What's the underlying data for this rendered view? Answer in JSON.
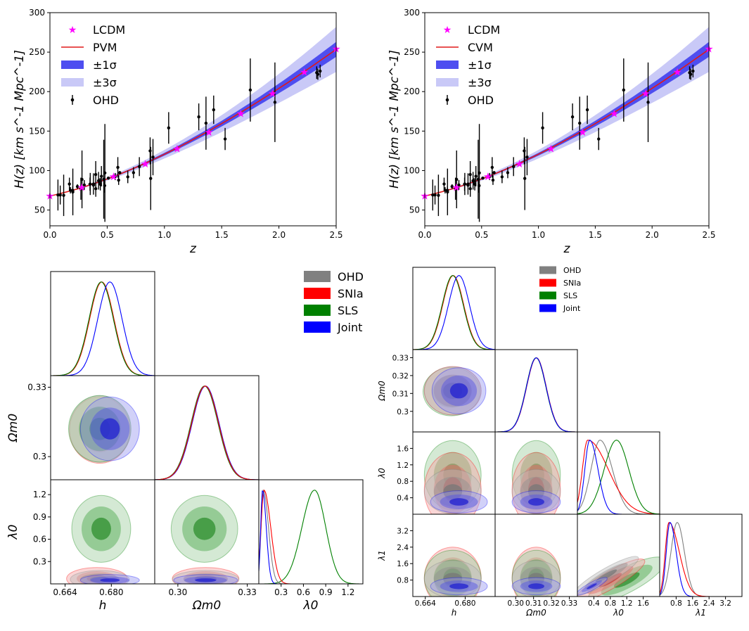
{
  "chart_data": [
    {
      "id": "hz-pvm",
      "type": "line",
      "xlabel": "z",
      "ylabel": "H(z) [km s^-1 Mpc^-1]",
      "xlim": [
        0,
        2.5
      ],
      "ylim": [
        30,
        300
      ],
      "xticks": [
        "0.0",
        "0.5",
        "1.0",
        "1.5",
        "2.0",
        "2.5"
      ],
      "yticks": [
        "50",
        "100",
        "150",
        "200",
        "250",
        "300"
      ],
      "legend": [
        "LCDM",
        "PVM",
        "±1σ",
        "±3σ",
        "OHD"
      ],
      "model": {
        "H0": 67.8,
        "Om": 0.31
      },
      "lcdm_points": {
        "x": [
          0.0,
          0.278,
          0.556,
          0.833,
          1.111,
          1.389,
          1.667,
          1.944,
          2.222,
          2.5
        ],
        "y": [
          67.8,
          78.6,
          92.2,
          108.6,
          127.5,
          148.7,
          172.1,
          197.5,
          224.9,
          254.1
        ]
      },
      "ohd": {
        "x": [
          0.07,
          0.09,
          0.12,
          0.17,
          0.179,
          0.199,
          0.2,
          0.24,
          0.27,
          0.28,
          0.3,
          0.35,
          0.352,
          0.38,
          0.3802,
          0.4,
          0.4004,
          0.4247,
          0.43,
          0.44,
          0.4497,
          0.47,
          0.4783,
          0.48,
          0.51,
          0.57,
          0.593,
          0.6,
          0.61,
          0.68,
          0.73,
          0.781,
          0.875,
          0.88,
          0.9,
          1.037,
          1.3,
          1.363,
          1.43,
          1.53,
          1.75,
          1.965,
          2.33,
          2.34,
          2.36
        ],
        "y": [
          69,
          69,
          68.6,
          83,
          75,
          75,
          72.9,
          79.69,
          77,
          88.8,
          81.7,
          82.7,
          83,
          81.5,
          83,
          95,
          77,
          87.1,
          86.45,
          82.6,
          92.8,
          89,
          80.9,
          97,
          90.4,
          92.4,
          104,
          87.9,
          97.3,
          92,
          97.3,
          105,
          125,
          90,
          117,
          154,
          168,
          160,
          177,
          140,
          202,
          186.5,
          224,
          222,
          226
        ],
        "err": [
          19.6,
          12,
          26.2,
          8,
          4,
          5,
          29.6,
          2.99,
          14,
          36.6,
          6.2,
          8.4,
          14,
          1.9,
          13.5,
          17,
          10.2,
          11.2,
          3.68,
          7.8,
          12.9,
          50,
          9,
          62,
          1.9,
          4.5,
          13,
          6.1,
          2.1,
          8,
          7,
          12,
          17,
          40,
          23,
          20,
          17,
          33.6,
          18,
          14,
          40,
          50.4,
          8,
          7,
          8
        ]
      }
    },
    {
      "id": "hz-cvm",
      "type": "line",
      "xlabel": "z",
      "ylabel": "H(z) [km s^-1 Mpc^-1]",
      "xlim": [
        0,
        2.5
      ],
      "ylim": [
        30,
        300
      ],
      "xticks": [
        "0.0",
        "0.5",
        "1.0",
        "1.5",
        "2.0",
        "2.5"
      ],
      "yticks": [
        "50",
        "100",
        "150",
        "200",
        "250",
        "300"
      ],
      "legend": [
        "LCDM",
        "CVM",
        "±1σ",
        "±3σ",
        "OHD"
      ],
      "note": "same LCDM points and OHD data as hz-pvm"
    },
    {
      "id": "corner-left",
      "type": "contour",
      "parameters": [
        "h",
        "Ωm0",
        "λ0"
      ],
      "legend": [
        "OHD",
        "SNIa",
        "SLS",
        "Joint"
      ],
      "colors": [
        "#808080",
        "#ff0000",
        "#008000",
        "#0000ff"
      ],
      "ranges": {
        "h": [
          0.659,
          0.695
        ],
        "Om": [
          0.29,
          0.335
        ],
        "lam0": [
          0.0,
          1.4
        ]
      },
      "xticks": {
        "h": [
          "0.664",
          "0.680"
        ],
        "Om": [
          "0.30",
          "0.33"
        ],
        "lam0": [
          "0.3",
          "0.6",
          "0.9",
          "1.2"
        ]
      },
      "yticks": {
        "Om": [
          "0.33",
          "0.3"
        ],
        "lam0": [
          "1.2",
          "0.9",
          "0.6",
          "0.3"
        ]
      },
      "estimates": {
        "h": {
          "OHD": 0.6765,
          "SNIa": 0.6765,
          "SLS": 0.6765,
          "Joint": 0.6795,
          "sigma": 0.0042
        },
        "Om": {
          "mean": 0.3118,
          "sigma": 0.0058
        },
        "lam0": {
          "Joint": 0.05,
          "SNIa": 0.07,
          "OHD": 0.06,
          "SLS": 0.75
        }
      }
    },
    {
      "id": "corner-right",
      "type": "contour",
      "parameters": [
        "h",
        "Ωm0",
        "λ0",
        "λ1"
      ],
      "legend": [
        "OHD",
        "SNIa",
        "SLS",
        "Joint"
      ],
      "colors": [
        "#808080",
        "#ff0000",
        "#008000",
        "#0000ff"
      ],
      "ranges": {
        "h": [
          0.659,
          0.692
        ],
        "Om": [
          0.2885,
          0.3345
        ],
        "lam0": [
          0.0,
          2.0
        ],
        "lam1": [
          0.0,
          4.0
        ]
      },
      "xticks": {
        "h": [
          "0.664",
          "0.680"
        ],
        "Om": [
          "0.30",
          "0.31",
          "0.32",
          "0.33"
        ],
        "lam0": [
          "0.4",
          "0.8",
          "1.2",
          "1.6"
        ],
        "lam1": [
          "0.8",
          "1.6",
          "2.4",
          "3.2"
        ]
      },
      "xtick_row_text": "0.300.310.320.33",
      "yticks": {
        "Om": [
          "0.33",
          "0.32",
          "0.31",
          "0.3"
        ],
        "lam0": [
          "1.6",
          "1.2",
          "0.8",
          "0.4"
        ],
        "lam1": [
          "3.2",
          "2.4",
          "1.6",
          "0.8"
        ]
      },
      "estimates": {
        "h": {
          "OHD": 0.675,
          "SNIa": 0.675,
          "SLS": 0.675,
          "Joint": 0.6775,
          "sigma": 0.0042
        },
        "Om": {
          "mean": 0.3115,
          "sigma": 0.0055
        },
        "lam0": {
          "Joint": 0.3,
          "SNIa": 0.25,
          "OHD": 0.55,
          "SLS": 0.95
        },
        "lam1": {
          "Joint": 0.5,
          "SNIa": 0.45,
          "OHD": 0.85
        }
      }
    }
  ]
}
